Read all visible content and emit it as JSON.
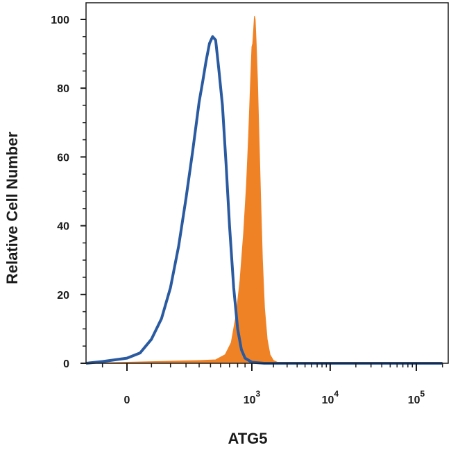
{
  "chart_data": {
    "type": "area",
    "title": "",
    "xlabel": "ATG5",
    "ylabel": "Relative Cell Number",
    "x_scale": "biexponential",
    "ylim": [
      0,
      100
    ],
    "y_ticks": [
      "0",
      "20",
      "40",
      "60",
      "80",
      "100"
    ],
    "x_ticks": [
      {
        "base": "0",
        "exp": ""
      },
      {
        "base": "10",
        "exp": "3"
      },
      {
        "base": "10",
        "exp": "4"
      },
      {
        "base": "10",
        "exp": "5"
      }
    ],
    "grid": false,
    "legend": "none",
    "colors": {
      "filled": "#f08226",
      "outline": "#2a5aa0",
      "axis": "#1a1a1a"
    },
    "series": [
      {
        "style": "outline",
        "color": "#2a5aa0",
        "points": [
          [
            -300,
            0
          ],
          [
            -100,
            0.5
          ],
          [
            0,
            1.5
          ],
          [
            50,
            3
          ],
          [
            100,
            7
          ],
          [
            150,
            13
          ],
          [
            200,
            22
          ],
          [
            250,
            34
          ],
          [
            300,
            48
          ],
          [
            350,
            62
          ],
          [
            400,
            76
          ],
          [
            430,
            82
          ],
          [
            460,
            88
          ],
          [
            490,
            93
          ],
          [
            520,
            95
          ],
          [
            550,
            94
          ],
          [
            580,
            86
          ],
          [
            620,
            75
          ],
          [
            660,
            58
          ],
          [
            700,
            40
          ],
          [
            750,
            22
          ],
          [
            800,
            10
          ],
          [
            850,
            4
          ],
          [
            900,
            1.5
          ],
          [
            1000,
            0.3
          ],
          [
            1500,
            0
          ],
          [
            200000,
            0
          ]
        ]
      },
      {
        "style": "filled",
        "color": "#f08226",
        "points": [
          [
            -300,
            0
          ],
          [
            0,
            0.3
          ],
          [
            200,
            0.6
          ],
          [
            400,
            0.8
          ],
          [
            550,
            1
          ],
          [
            650,
            2.5
          ],
          [
            720,
            6
          ],
          [
            780,
            14
          ],
          [
            830,
            24
          ],
          [
            880,
            38
          ],
          [
            920,
            52
          ],
          [
            950,
            66
          ],
          [
            980,
            82
          ],
          [
            1000,
            92
          ],
          [
            1030,
            93
          ],
          [
            1060,
            97
          ],
          [
            1090,
            101
          ],
          [
            1120,
            100
          ],
          [
            1160,
            93
          ],
          [
            1210,
            82
          ],
          [
            1270,
            66
          ],
          [
            1340,
            48
          ],
          [
            1420,
            30
          ],
          [
            1520,
            16
          ],
          [
            1650,
            7
          ],
          [
            1800,
            2.5
          ],
          [
            2000,
            0.8
          ],
          [
            2300,
            0.2
          ],
          [
            3000,
            0
          ],
          [
            200000,
            0
          ]
        ]
      }
    ]
  }
}
